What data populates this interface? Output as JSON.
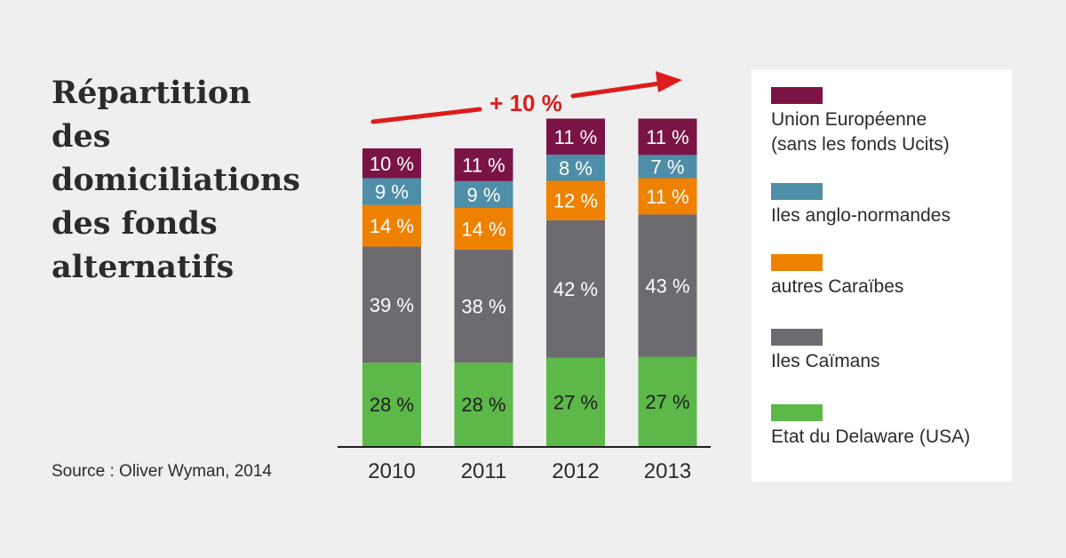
{
  "title": [
    "Répartition",
    "des",
    "domiciliations",
    "des fonds",
    "alternatifs"
  ],
  "source": "Source : Oliver Wyman, 2014",
  "colors": {
    "ue": "#7a1346",
    "anglo": "#4e8ea8",
    "caraibes": "#ee8200",
    "caimans": "#6d6a70",
    "delaware": "#5cb848",
    "arrow": "#dd1c1c"
  },
  "chart_data": {
    "type": "bar",
    "stacked": true,
    "title": "Répartition des domiciliations des fonds alternatifs",
    "categories": [
      "2010",
      "2011",
      "2012",
      "2013"
    ],
    "totals_relative": [
      100,
      100,
      110,
      110
    ],
    "series": [
      {
        "name": "Etat du Delaware (USA)",
        "color_key": "delaware",
        "values": [
          28,
          28,
          27,
          27
        ],
        "labels": [
          "28 %",
          "28 %",
          "27 %",
          "27 %"
        ]
      },
      {
        "name": "Iles Caïmans",
        "color_key": "caimans",
        "values": [
          39,
          38,
          42,
          43
        ],
        "labels": [
          "39 %",
          "38 %",
          "42 %",
          "43 %"
        ]
      },
      {
        "name": "autres Caraïbes",
        "color_key": "caraibes",
        "values": [
          14,
          14,
          12,
          11
        ],
        "labels": [
          "14 %",
          "14 %",
          "12 %",
          "11 %"
        ]
      },
      {
        "name": "Iles anglo-normandes",
        "color_key": "anglo",
        "values": [
          9,
          9,
          8,
          7
        ],
        "labels": [
          "9 %",
          "9 %",
          "8 %",
          "7 %"
        ]
      },
      {
        "name": "Union Européenne (sans les fonds Ucits)",
        "color_key": "ue",
        "values": [
          10,
          11,
          11,
          11
        ],
        "labels": [
          "10 %",
          "11 %",
          "11 %",
          "11 %"
        ]
      }
    ],
    "annotation": "+ 10 %",
    "legend_position": "right"
  },
  "legend": [
    {
      "line1": "Union Européenne",
      "line2": "(sans les fonds Ucits)",
      "color_key": "ue"
    },
    {
      "line1": "Iles anglo-normandes",
      "line2": "",
      "color_key": "anglo"
    },
    {
      "line1": "autres Caraïbes",
      "line2": "",
      "color_key": "caraibes"
    },
    {
      "line1": "Iles Caïmans",
      "line2": "",
      "color_key": "caimans"
    },
    {
      "line1": "Etat du Delaware (USA)",
      "line2": "",
      "color_key": "delaware"
    }
  ]
}
